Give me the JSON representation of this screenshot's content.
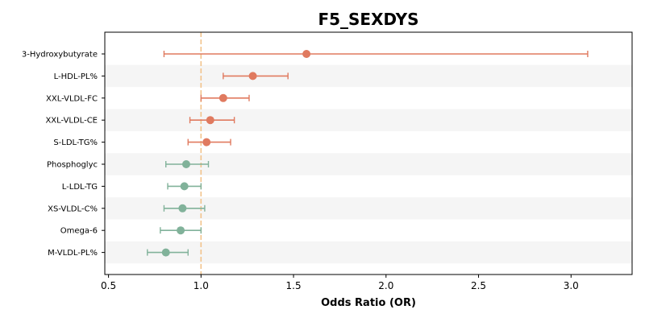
{
  "chart_data": {
    "type": "scatter",
    "title": "F5_SEXDYS",
    "xlabel": "Odds Ratio (OR)",
    "ylabel": "",
    "xlim": [
      0.48,
      3.33
    ],
    "xticks": [
      0.5,
      1.0,
      1.5,
      2.0,
      2.5,
      3.0
    ],
    "xtick_labels": [
      "0.5",
      "1.0",
      "1.5",
      "2.0",
      "2.5",
      "3.0"
    ],
    "reference_line": 1.0,
    "grid": false,
    "colors": {
      "above_one": "#e07a5f",
      "below_one": "#81b29a",
      "reference_line": "#f2c38b",
      "band": "#f5f5f5"
    },
    "categories": [
      "3-Hydroxybutyrate",
      "L-HDL-PL%",
      "XXL-VLDL-FC",
      "XXL-VLDL-CE",
      "S-LDL-TG%",
      "Phosphoglyc",
      "L-LDL-TG",
      "XS-VLDL-C%",
      "Omega-6",
      "M-VLDL-PL%"
    ],
    "points": [
      {
        "label": "3-Hydroxybutyrate",
        "or": 1.57,
        "lower": 0.8,
        "upper": 3.09
      },
      {
        "label": "L-HDL-PL%",
        "or": 1.28,
        "lower": 1.12,
        "upper": 1.47
      },
      {
        "label": "XXL-VLDL-FC",
        "or": 1.12,
        "lower": 1.0,
        "upper": 1.26
      },
      {
        "label": "XXL-VLDL-CE",
        "or": 1.05,
        "lower": 0.94,
        "upper": 1.18
      },
      {
        "label": "S-LDL-TG%",
        "or": 1.03,
        "lower": 0.93,
        "upper": 1.16
      },
      {
        "label": "Phosphoglyc",
        "or": 0.92,
        "lower": 0.81,
        "upper": 1.04
      },
      {
        "label": "L-LDL-TG",
        "or": 0.91,
        "lower": 0.82,
        "upper": 1.0
      },
      {
        "label": "XS-VLDL-C%",
        "or": 0.9,
        "lower": 0.8,
        "upper": 1.02
      },
      {
        "label": "Omega-6",
        "or": 0.89,
        "lower": 0.78,
        "upper": 1.0
      },
      {
        "label": "M-VLDL-PL%",
        "or": 0.81,
        "lower": 0.71,
        "upper": 0.93
      }
    ]
  }
}
